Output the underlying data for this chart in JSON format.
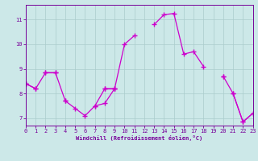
{
  "x": [
    0,
    1,
    2,
    3,
    4,
    5,
    6,
    7,
    8,
    9,
    10,
    11,
    12,
    13,
    14,
    15,
    16,
    17,
    18,
    19,
    20,
    21,
    22,
    23
  ],
  "line_jagged": [
    8.4,
    8.2,
    null,
    null,
    7.7,
    7.4,
    7.1,
    7.5,
    7.6,
    8.2,
    10.0,
    10.35,
    null,
    10.8,
    11.2,
    11.25,
    9.6,
    9.7,
    9.1,
    null,
    null,
    8.0,
    6.85,
    7.2
  ],
  "line_flat_upper": [
    8.4,
    null,
    8.85,
    8.85,
    null,
    null,
    null,
    null,
    8.2,
    8.2,
    null,
    null,
    null,
    null,
    null,
    null,
    null,
    null,
    null,
    null,
    8.7,
    null,
    null,
    null
  ],
  "line_declining": [
    8.4,
    8.2,
    8.85,
    8.85,
    7.7,
    null,
    null,
    7.5,
    8.2,
    8.2,
    null,
    null,
    null,
    null,
    null,
    null,
    null,
    null,
    null,
    null,
    8.7,
    8.0,
    6.85,
    7.2
  ],
  "ylim": [
    6.7,
    11.6
  ],
  "xlim": [
    0,
    23
  ],
  "yticks": [
    7,
    8,
    9,
    10,
    11
  ],
  "xticks": [
    0,
    1,
    2,
    3,
    4,
    5,
    6,
    7,
    8,
    9,
    10,
    11,
    12,
    13,
    14,
    15,
    16,
    17,
    18,
    19,
    20,
    21,
    22,
    23
  ],
  "xlabel": "Windchill (Refroidissement éolien,°C)",
  "line_color": "#cc00cc",
  "bg_color": "#cce8e8",
  "grid_color": "#aacccc",
  "axis_color": "#770099",
  "spine_color": "#770099",
  "marker": "+",
  "linewidth": 0.9,
  "markersize": 4,
  "markeredgewidth": 1.0,
  "xlabel_fontsize": 5.0,
  "tick_fontsize": 5.0
}
